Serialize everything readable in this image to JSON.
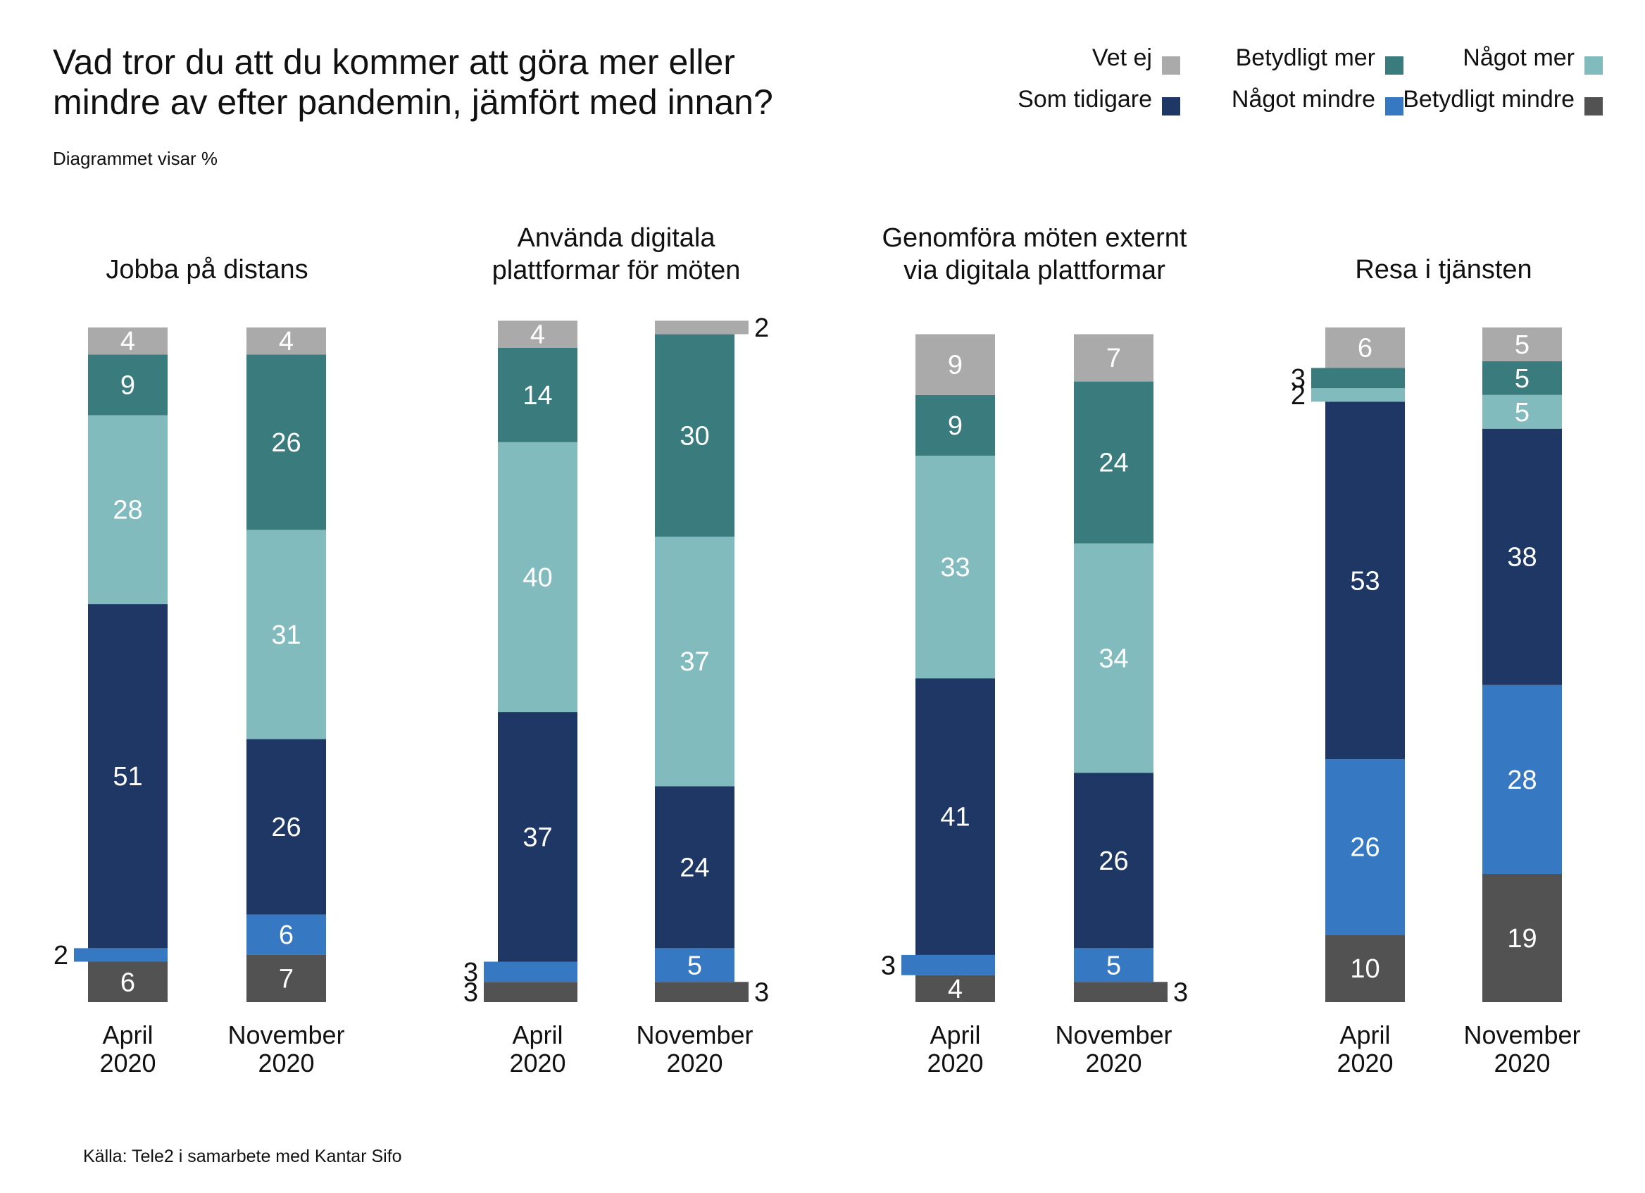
{
  "header": {
    "title_line1": "Vad tror du att du kommer att göra mer eller",
    "title_line2": "mindre av efter pandemin, jämfört med innan?",
    "subtitle": "Diagrammet visar %",
    "source": "Källa: Tele2 i samarbete med Kantar Sifo"
  },
  "chart_data": {
    "type": "bar",
    "stacked": true,
    "unit": "%",
    "legend": [
      {
        "name": "Vet ej",
        "color": "#aaaaaa"
      },
      {
        "name": "Betydligt mer",
        "color": "#3a7b7e"
      },
      {
        "name": "Något mer",
        "color": "#82bbbe"
      },
      {
        "name": "Som tidigare",
        "color": "#1f3764"
      },
      {
        "name": "Något mindre",
        "color": "#3778c2"
      },
      {
        "name": "Betydligt mindre",
        "color": "#525252"
      }
    ],
    "legend_placement": "top-right",
    "stack_order_bottom_to_top": [
      "Betydligt mindre",
      "Något mindre",
      "Som tidigare",
      "Något mer",
      "Betydligt mer",
      "Vet ej"
    ],
    "panels": [
      {
        "title": [
          "Jobba på distans"
        ],
        "bars": [
          {
            "label": [
              "April",
              "2020"
            ],
            "values": {
              "Betydligt mindre": 6,
              "Något mindre": 2,
              "Som tidigare": 51,
              "Något mer": 28,
              "Betydligt mer": 9,
              "Vet ej": 4
            }
          },
          {
            "label": [
              "November",
              "2020"
            ],
            "values": {
              "Betydligt mindre": 7,
              "Något mindre": 6,
              "Som tidigare": 26,
              "Något mer": 31,
              "Betydligt mer": 26,
              "Vet ej": 4
            }
          }
        ]
      },
      {
        "title": [
          "Använda digitala",
          "plattformar för möten"
        ],
        "bars": [
          {
            "label": [
              "April",
              "2020"
            ],
            "values": {
              "Betydligt mindre": 3,
              "Något mindre": 3,
              "Som tidigare": 37,
              "Något mer": 40,
              "Betydligt mer": 14,
              "Vet ej": 4
            }
          },
          {
            "label": [
              "November",
              "2020"
            ],
            "values": {
              "Betydligt mindre": 3,
              "Något mindre": 5,
              "Som tidigare": 24,
              "Något mer": 37,
              "Betydligt mer": 30,
              "Vet ej": 2
            }
          }
        ]
      },
      {
        "title": [
          "Genomföra möten externt",
          "via digitala plattformar"
        ],
        "bars": [
          {
            "label": [
              "April",
              "2020"
            ],
            "values": {
              "Betydligt mindre": 4,
              "Något mindre": 3,
              "Som tidigare": 41,
              "Något mer": 33,
              "Betydligt mer": 9,
              "Vet ej": 9
            }
          },
          {
            "label": [
              "November",
              "2020"
            ],
            "values": {
              "Betydligt mindre": 3,
              "Något mindre": 5,
              "Som tidigare": 26,
              "Något mer": 34,
              "Betydligt mer": 24,
              "Vet ej": 7
            }
          }
        ]
      },
      {
        "title": [
          "Resa i tjänsten"
        ],
        "bars": [
          {
            "label": [
              "April",
              "2020"
            ],
            "values": {
              "Betydligt mindre": 10,
              "Något mindre": 26,
              "Som tidigare": 53,
              "Något mer": 2,
              "Betydligt mer": 3,
              "Vet ej": 6
            }
          },
          {
            "label": [
              "November",
              "2020"
            ],
            "values": {
              "Betydligt mindre": 19,
              "Något mindre": 28,
              "Som tidigare": 38,
              "Något mer": 5,
              "Betydligt mer": 5,
              "Vet ej": 5
            }
          }
        ]
      }
    ]
  }
}
